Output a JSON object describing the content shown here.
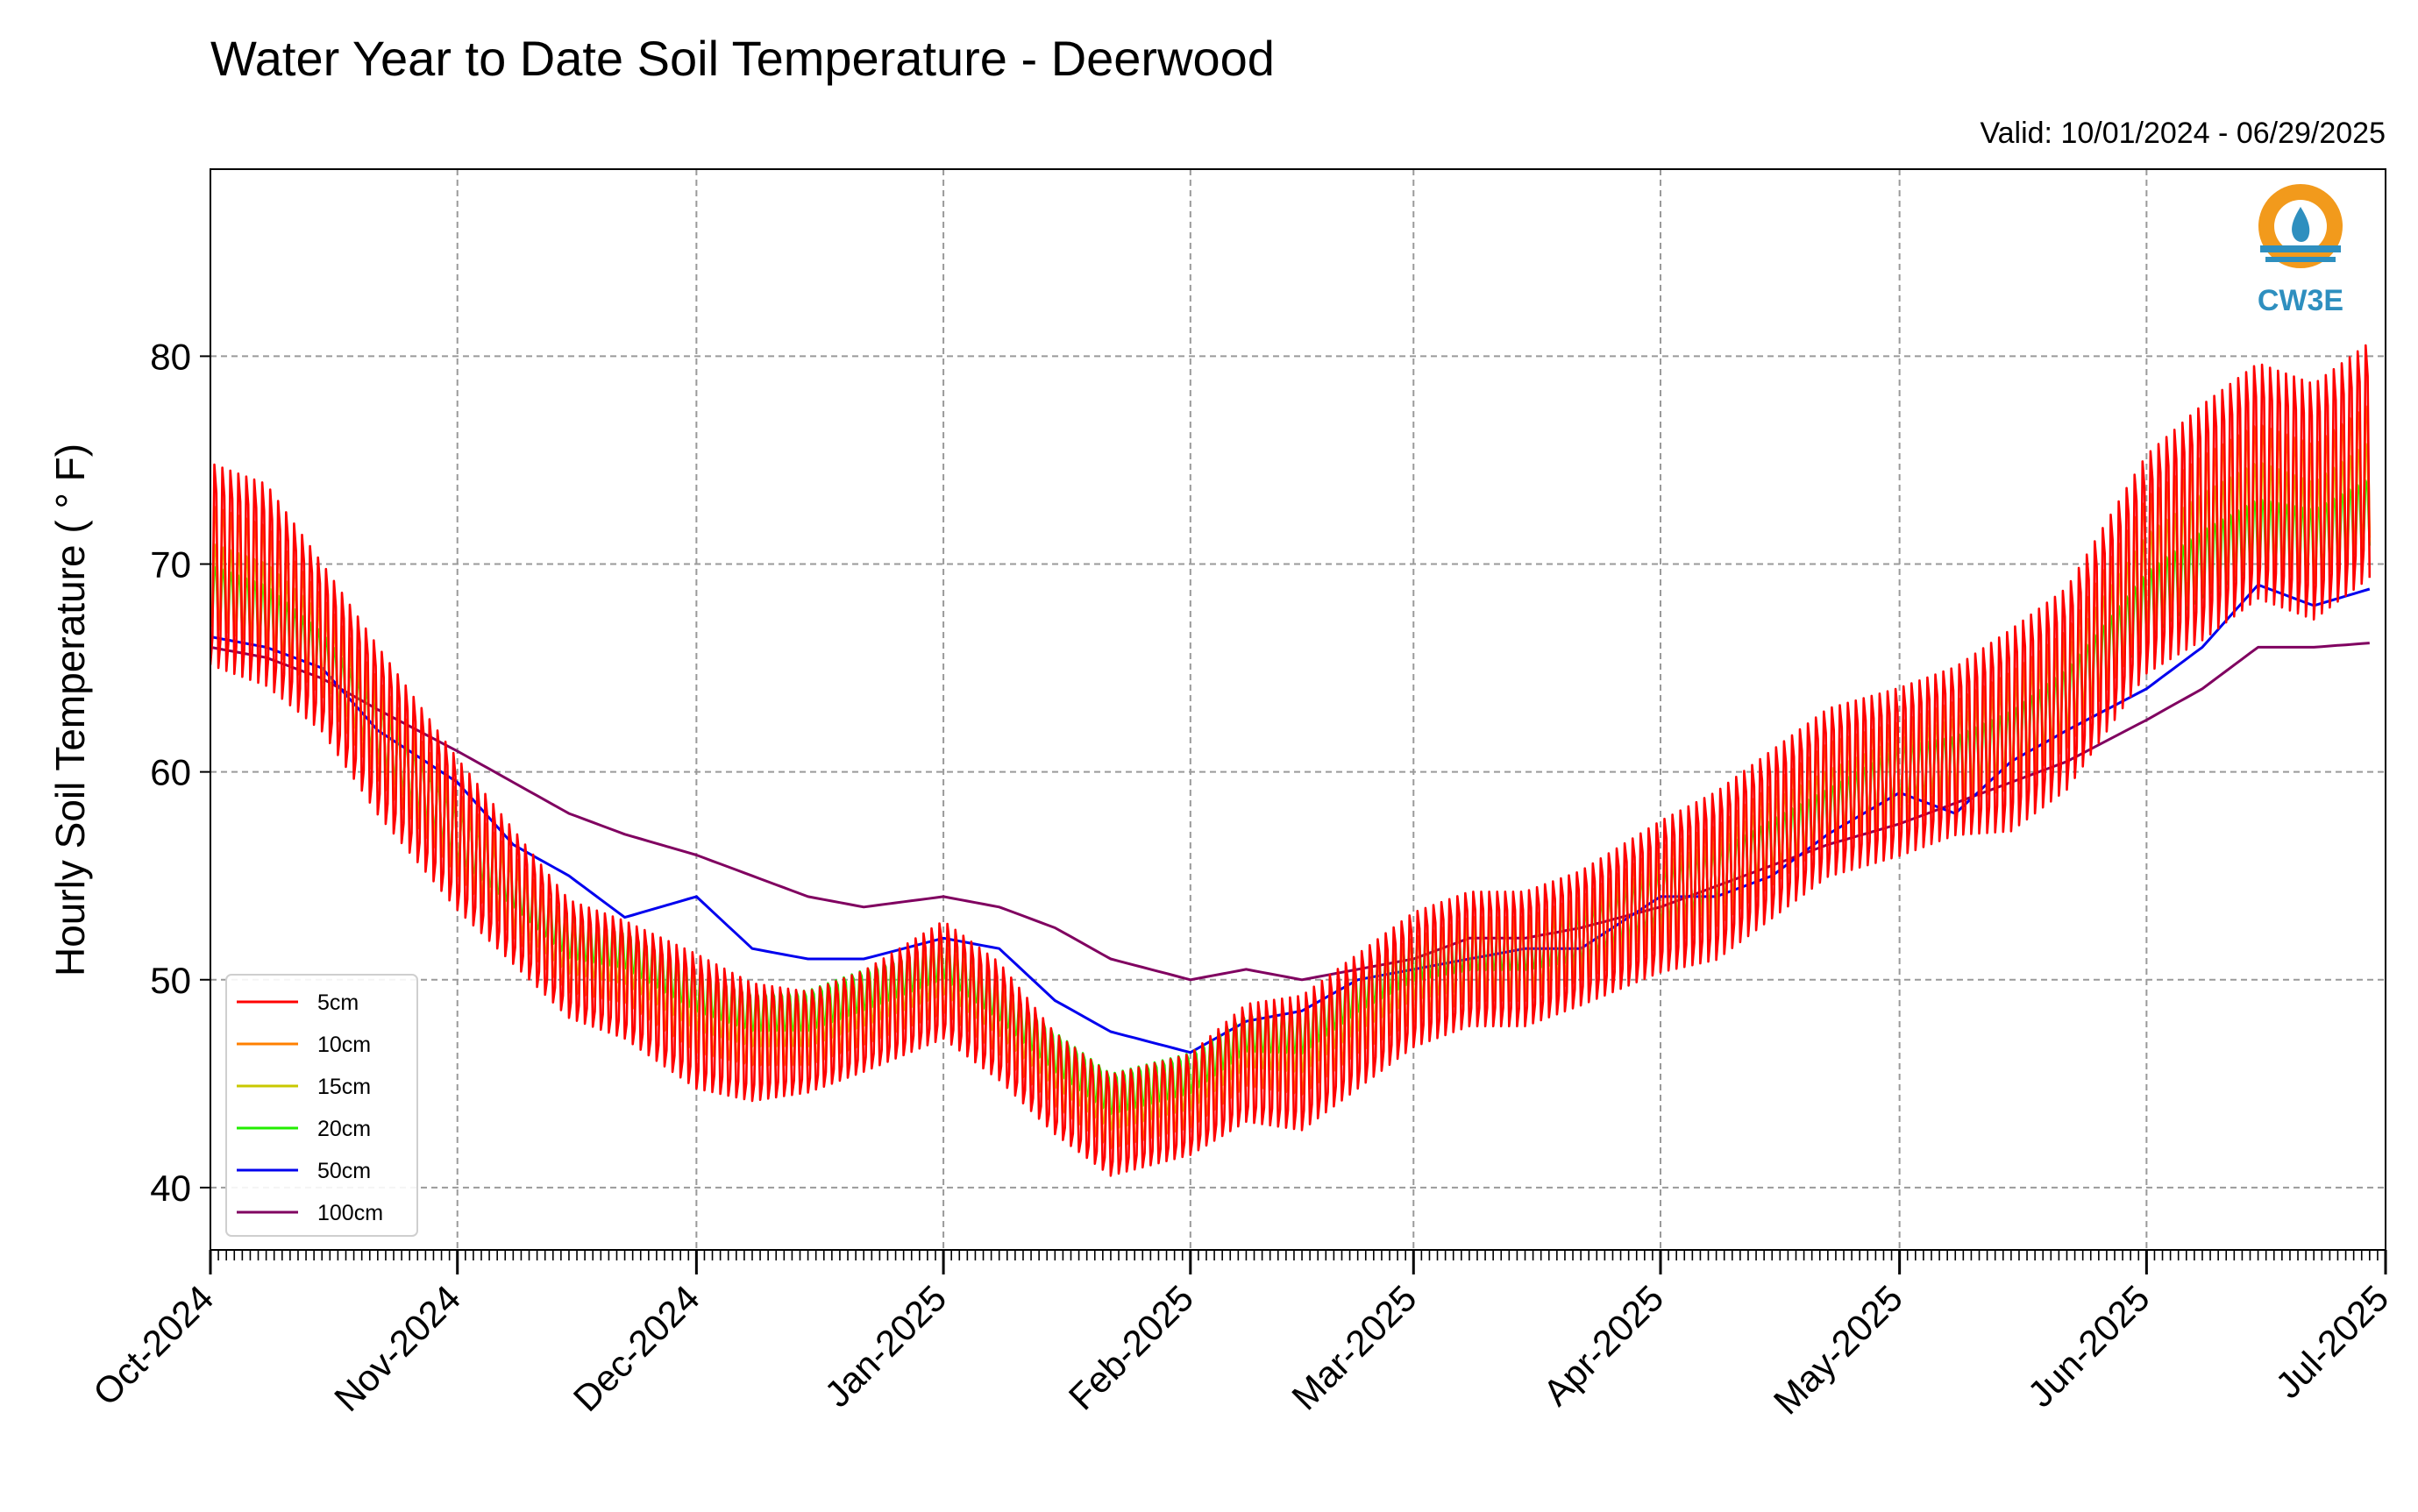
{
  "chart_data": {
    "type": "line",
    "title": "Water Year to Date Soil Temperature - Deerwood",
    "subtitle": "Valid: 10/01/2024 - 06/29/2025",
    "ylabel": "Hourly Soil Temperature ( ° F)",
    "xlabel": "",
    "xlim": [
      "2024-10-01",
      "2025-07-01"
    ],
    "ylim": [
      37,
      89
    ],
    "grid": true,
    "legend_position": "lower-left",
    "x_ticks": [
      "2024-10-01",
      "2024-11-01",
      "2024-12-01",
      "2025-01-01",
      "2025-02-01",
      "2025-03-01",
      "2025-04-01",
      "2025-05-01",
      "2025-06-01",
      "2025-07-01"
    ],
    "x_tick_labels": [
      "Oct-2024",
      "Nov-2024",
      "Dec-2024",
      "Jan-2025",
      "Feb-2025",
      "Mar-2025",
      "Apr-2025",
      "May-2025",
      "Jun-2025",
      "Jul-2025"
    ],
    "y_ticks": [
      40,
      50,
      60,
      70,
      80
    ],
    "x": [
      "2024-10-01",
      "2024-10-08",
      "2024-10-15",
      "2024-10-22",
      "2024-11-01",
      "2024-11-08",
      "2024-11-15",
      "2024-11-22",
      "2024-12-01",
      "2024-12-08",
      "2024-12-15",
      "2024-12-22",
      "2025-01-01",
      "2025-01-08",
      "2025-01-15",
      "2025-01-22",
      "2025-02-01",
      "2025-02-08",
      "2025-02-15",
      "2025-02-22",
      "2025-03-01",
      "2025-03-08",
      "2025-03-15",
      "2025-03-22",
      "2025-04-01",
      "2025-04-08",
      "2025-04-15",
      "2025-04-22",
      "2025-05-01",
      "2025-05-08",
      "2025-05-15",
      "2025-05-22",
      "2025-06-01",
      "2025-06-08",
      "2025-06-15",
      "2025-06-22",
      "2025-06-29"
    ],
    "series": [
      {
        "name": "5cm",
        "color": "#ff0000",
        "amplitude": [
          6,
          6,
          5,
          5,
          4.5,
          4,
          3.5,
          3.5,
          4,
          3.5,
          3,
          3,
          3.5,
          3.5,
          3,
          3,
          3,
          3.5,
          4,
          4,
          4,
          4,
          4,
          4,
          4.5,
          5,
          5,
          5,
          5,
          5,
          6,
          6,
          6.5,
          7,
          7,
          7,
          7
        ],
        "values": [
          70,
          69,
          66,
          62,
          57,
          54,
          51,
          50,
          48,
          47,
          47,
          48,
          50,
          48,
          45,
          43,
          44,
          46,
          46,
          48,
          50,
          51,
          51,
          52,
          54,
          55,
          57,
          59,
          60,
          61,
          62,
          64,
          70,
          72,
          74,
          73,
          75
        ]
      },
      {
        "name": "10cm",
        "color": "#ff8000",
        "amplitude": [
          3.5,
          3.5,
          3,
          3,
          2.5,
          2.5,
          2,
          2,
          2.5,
          2,
          2,
          2,
          2,
          2,
          2,
          2,
          2,
          2,
          2.5,
          2.5,
          2.5,
          2.5,
          2.5,
          2.5,
          3,
          3,
          3,
          3,
          3,
          3,
          3.5,
          3.5,
          4,
          4,
          4,
          4,
          4
        ],
        "values": [
          70,
          69,
          66,
          62,
          57,
          54,
          51,
          50.5,
          48.5,
          47.5,
          47.5,
          48.5,
          50,
          48,
          45.5,
          43.5,
          44.5,
          46.5,
          46.5,
          48.5,
          50,
          51,
          51,
          52,
          54,
          55,
          57,
          59,
          60,
          61,
          62,
          64,
          70,
          72,
          73.5,
          72.5,
          74.5
        ]
      },
      {
        "name": "15cm",
        "color": "#c8c800",
        "amplitude": [
          2.5,
          2.5,
          2,
          2,
          2,
          1.8,
          1.5,
          1.5,
          1.8,
          1.5,
          1.5,
          1.5,
          1.5,
          1.5,
          1.5,
          1.5,
          1.5,
          1.5,
          1.8,
          1.8,
          1.8,
          1.8,
          1.8,
          1.8,
          2,
          2,
          2,
          2,
          2,
          2,
          2.5,
          2.5,
          3,
          3,
          3,
          3,
          3
        ],
        "values": [
          69,
          68,
          66,
          62,
          57,
          54,
          51.5,
          51,
          49,
          48,
          48,
          49,
          50.5,
          48.5,
          46,
          44,
          45,
          47,
          47,
          49,
          50.5,
          51,
          51,
          52,
          54,
          55,
          57,
          58.5,
          60,
          61,
          62,
          64,
          69,
          71,
          72.5,
          71.5,
          73.5
        ]
      },
      {
        "name": "20cm",
        "color": "#22ee00",
        "amplitude": [
          1.8,
          1.8,
          1.5,
          1.5,
          1.5,
          1.3,
          1.2,
          1.2,
          1.3,
          1.2,
          1.2,
          1.2,
          1.2,
          1.2,
          1.2,
          1.2,
          1.2,
          1.2,
          1.3,
          1.3,
          1.3,
          1.3,
          1.3,
          1.3,
          1.5,
          1.5,
          1.5,
          1.5,
          1.5,
          1.5,
          1.8,
          1.8,
          2,
          2,
          2,
          2,
          2
        ],
        "values": [
          68.5,
          67.5,
          65.5,
          62,
          57,
          54.5,
          52,
          51.5,
          49.5,
          48.5,
          48.5,
          49.5,
          51,
          49,
          46.5,
          44.5,
          45.5,
          47.5,
          47.5,
          49.5,
          51,
          51.5,
          51.5,
          52,
          54,
          55,
          56.5,
          58,
          60,
          60.5,
          61.5,
          63.5,
          68,
          70,
          71.5,
          71,
          72.5
        ]
      },
      {
        "name": "50cm",
        "color": "#0000ee",
        "values": [
          66.5,
          66,
          65,
          62,
          59.5,
          56.5,
          55,
          53,
          54,
          51.5,
          51,
          51,
          52,
          51.5,
          49,
          47.5,
          46.5,
          48,
          48.5,
          50,
          50.5,
          51,
          51.5,
          51.5,
          54,
          54,
          55,
          57,
          59,
          58,
          60.5,
          62,
          64,
          66,
          69,
          68,
          68.8
        ]
      },
      {
        "name": "100cm",
        "color": "#800060",
        "values": [
          66,
          65.5,
          64.5,
          63,
          61,
          59.5,
          58,
          57,
          56,
          55,
          54,
          53.5,
          54,
          53.5,
          52.5,
          51,
          50,
          50.5,
          50,
          50.5,
          51,
          52,
          52,
          52.5,
          53.5,
          54.5,
          55.5,
          56.5,
          57.5,
          58.5,
          59.5,
          60.5,
          62.5,
          64,
          66,
          66,
          66.2
        ]
      }
    ]
  },
  "logo": {
    "text": "CW3E"
  }
}
